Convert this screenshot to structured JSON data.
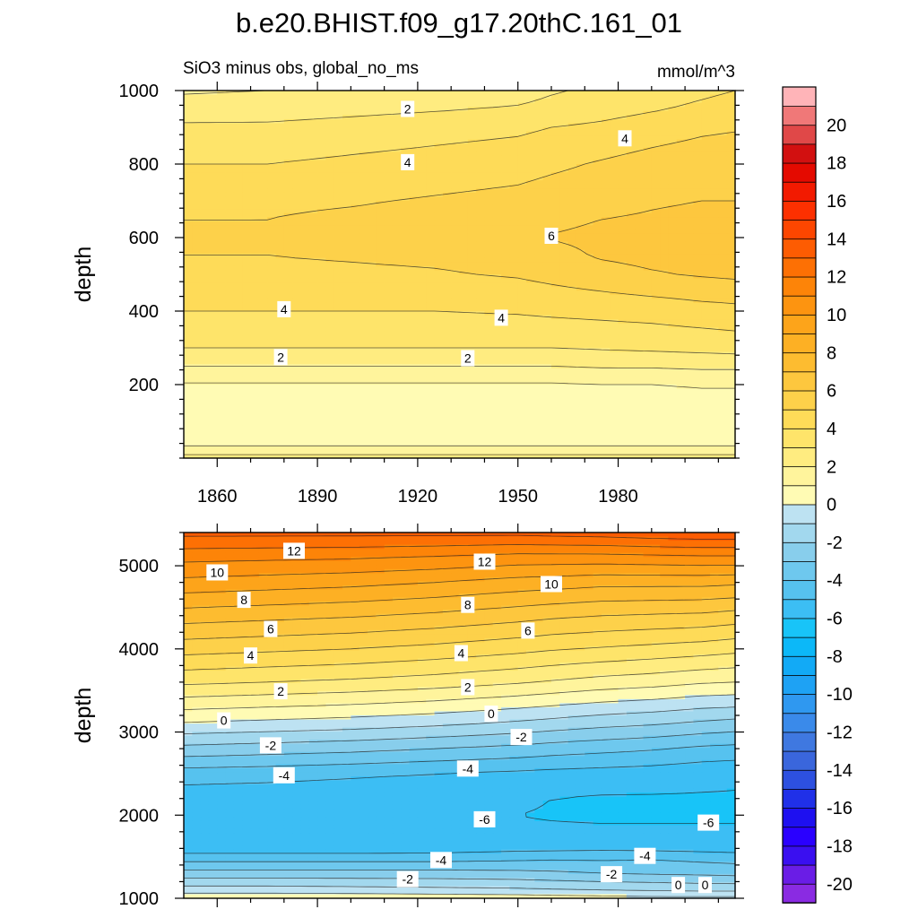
{
  "figure": {
    "title": "b.e20.BHIST.f09_g17.20thC.161_01",
    "subtitle_left": "SiO3 minus obs, global_no_ms",
    "subtitle_right": "mmol/m^3"
  },
  "colorbar": {
    "levels": [
      -21,
      -20,
      -19,
      -18,
      -17,
      -16,
      -15,
      -14,
      -13,
      -12,
      -11,
      -10,
      -9,
      -8,
      -7,
      -6,
      -5,
      -4,
      -3,
      -2,
      -1,
      0,
      1,
      2,
      3,
      4,
      5,
      6,
      7,
      8,
      9,
      10,
      11,
      12,
      13,
      14,
      15,
      16,
      17,
      18,
      19,
      20,
      21
    ],
    "colors": [
      "#8a2be2",
      "#6a1de6",
      "#3a0ff0",
      "#2a00ff",
      "#1e10f0",
      "#2030e8",
      "#2d50e0",
      "#3a66dc",
      "#3f78e0",
      "#3a8aea",
      "#2f98f0",
      "#1ea2f4",
      "#12aaf6",
      "#0cb8f8",
      "#18c4f8",
      "#3cbef4",
      "#56c2ef",
      "#6ec8ee",
      "#88ceec",
      "#a2d8ee",
      "#bde2f2",
      "#fffbb4",
      "#fff49c",
      "#ffec80",
      "#fee46a",
      "#fedb58",
      "#fdd14a",
      "#fdc73e",
      "#fdbc30",
      "#fdb024",
      "#fda41a",
      "#fd9410",
      "#fd8408",
      "#fd7004",
      "#fd5c02",
      "#fd4600",
      "#fd3000",
      "#f21a00",
      "#e40a00",
      "#d21010",
      "#e04848",
      "#f07878",
      "#ffb4b8"
    ],
    "tick_labels": [
      "-20",
      "-18",
      "-16",
      "-14",
      "-12",
      "-10",
      "-8",
      "-6",
      "-4",
      "-2",
      "0",
      "2",
      "4",
      "6",
      "8",
      "10",
      "12",
      "14",
      "16",
      "18",
      "20"
    ]
  },
  "chart_data": [
    {
      "type": "contour",
      "panel": "top",
      "title": "SiO3 minus obs, global_no_ms",
      "units": "mmol/m^3",
      "ylabel": "depth",
      "xlim": [
        1850,
        2015
      ],
      "ylim": [
        1000,
        0
      ],
      "x": [
        1850,
        1875,
        1900,
        1925,
        1950,
        1960,
        1975,
        1990,
        2005,
        2015
      ],
      "y": [
        0,
        25,
        50,
        100,
        150,
        200,
        250,
        300,
        400,
        500,
        550,
        600,
        650,
        700,
        800,
        900,
        950,
        1000
      ],
      "z": [
        [
          2.5,
          2.5,
          2.5,
          2.5,
          2.5,
          2.5,
          2.5,
          2.5,
          2.5,
          2.5
        ],
        [
          1.2,
          1.2,
          1.2,
          1.2,
          1.2,
          1.2,
          1.2,
          1.2,
          1.2,
          1.2
        ],
        [
          0.6,
          0.6,
          0.6,
          0.6,
          0.6,
          0.6,
          0.6,
          0.6,
          0.6,
          0.6
        ],
        [
          0.3,
          0.3,
          0.3,
          0.3,
          0.3,
          0.3,
          0.3,
          0.3,
          0.3,
          0.3
        ],
        [
          0.5,
          0.5,
          0.5,
          0.5,
          0.5,
          0.5,
          0.5,
          0.5,
          0.6,
          0.6
        ],
        [
          0.9,
          0.9,
          0.9,
          0.9,
          0.9,
          0.9,
          1.0,
          1.0,
          1.1,
          1.1
        ],
        [
          2.0,
          2.0,
          2.0,
          2.0,
          2.0,
          2.0,
          2.1,
          2.1,
          2.2,
          2.2
        ],
        [
          3.0,
          3.0,
          3.0,
          3.0,
          3.0,
          3.0,
          3.1,
          3.2,
          3.3,
          3.4
        ],
        [
          4.0,
          4.0,
          4.0,
          4.0,
          4.1,
          4.2,
          4.3,
          4.4,
          4.6,
          4.7
        ],
        [
          4.7,
          4.7,
          4.8,
          4.9,
          5.1,
          5.3,
          5.6,
          5.9,
          6.1,
          6.2
        ],
        [
          5.0,
          5.0,
          5.1,
          5.2,
          5.4,
          5.7,
          6.1,
          6.3,
          6.4,
          6.4
        ],
        [
          5.1,
          5.1,
          5.2,
          5.4,
          5.7,
          6.05,
          6.2,
          6.3,
          6.4,
          6.4
        ],
        [
          5.0,
          5.0,
          5.2,
          5.4,
          5.6,
          5.8,
          6.0,
          6.1,
          6.2,
          6.2
        ],
        [
          4.7,
          4.8,
          4.9,
          5.1,
          5.3,
          5.5,
          5.7,
          5.9,
          6.0,
          6.0
        ],
        [
          4.0,
          4.0,
          4.2,
          4.4,
          4.6,
          4.8,
          5.1,
          5.4,
          5.6,
          5.7
        ],
        [
          3.2,
          3.2,
          3.4,
          3.6,
          3.8,
          4.0,
          4.2,
          4.5,
          4.8,
          4.9
        ],
        [
          2.4,
          2.5,
          2.7,
          2.9,
          3.1,
          3.3,
          3.6,
          3.9,
          4.2,
          4.4
        ],
        [
          1.9,
          2.0,
          2.2,
          2.4,
          2.6,
          2.9,
          3.2,
          3.5,
          3.8,
          4.0
        ]
      ],
      "contour_labels": [
        {
          "text": "2",
          "x": 1879,
          "y": 275
        },
        {
          "text": "2",
          "x": 1935,
          "y": 272
        },
        {
          "text": "4",
          "x": 1880,
          "y": 405
        },
        {
          "text": "4",
          "x": 1945,
          "y": 382
        },
        {
          "text": "6",
          "x": 1960,
          "y": 605
        },
        {
          "text": "4",
          "x": 1917,
          "y": 805
        },
        {
          "text": "4",
          "x": 1982,
          "y": 870
        },
        {
          "text": "2",
          "x": 1917,
          "y": 950
        }
      ]
    },
    {
      "type": "contour",
      "panel": "bottom",
      "units": "mmol/m^3",
      "ylabel": "depth",
      "xlim": [
        1850,
        2015
      ],
      "ylim": [
        5400,
        1000
      ],
      "x": [
        1850,
        1875,
        1900,
        1925,
        1950,
        1960,
        1975,
        1990,
        2005,
        2015
      ],
      "y": [
        1000,
        1100,
        1300,
        1500,
        1600,
        1800,
        2000,
        2200,
        2500,
        2800,
        3100,
        3300,
        3600,
        4000,
        4400,
        4800,
        5100,
        5400
      ],
      "z": [
        [
          0.8,
          0.8,
          0.8,
          0.7,
          0.6,
          0.5,
          0.4,
          0.3,
          0.3,
          0.3
        ],
        [
          -0.5,
          -0.5,
          -0.6,
          -0.7,
          -0.8,
          -0.9,
          -1.0,
          -1.1,
          -1.2,
          -1.2
        ],
        [
          -2.6,
          -2.6,
          -2.6,
          -2.6,
          -2.7,
          -2.8,
          -3.0,
          -3.1,
          -3.2,
          -3.3
        ],
        [
          -4.6,
          -4.6,
          -4.6,
          -4.6,
          -4.4,
          -4.3,
          -4.3,
          -4.2,
          -4.4,
          -4.5
        ],
        [
          -5.6,
          -5.6,
          -5.6,
          -5.5,
          -5.3,
          -5.3,
          -5.2,
          -5.3,
          -5.4,
          -5.5
        ],
        [
          -5.9,
          -5.9,
          -5.9,
          -5.9,
          -5.9,
          -5.9,
          -5.9,
          -5.9,
          -5.9,
          -5.9
        ],
        [
          -5.9,
          -5.9,
          -5.9,
          -5.9,
          -6.0,
          -6.05,
          -6.1,
          -6.1,
          -6.1,
          -6.1
        ],
        [
          -5.6,
          -5.7,
          -5.8,
          -5.9,
          -5.9,
          -6.0,
          -6.1,
          -6.1,
          -6.1,
          -6.1
        ],
        [
          -4.5,
          -4.6,
          -4.8,
          -5.0,
          -5.2,
          -5.3,
          -5.4,
          -5.5,
          -5.7,
          -5.8
        ],
        [
          -2.3,
          -2.5,
          -2.7,
          -3.0,
          -3.3,
          -3.5,
          -3.7,
          -3.9,
          -4.2,
          -4.3
        ],
        [
          -0.1,
          -0.3,
          -0.5,
          -0.8,
          -1.2,
          -1.4,
          -1.7,
          -1.9,
          -2.2,
          -2.4
        ],
        [
          1.2,
          1.0,
          0.8,
          0.5,
          0.1,
          -0.1,
          -0.4,
          -0.6,
          -0.9,
          -1.0
        ],
        [
          3.2,
          3.0,
          2.8,
          2.5,
          2.1,
          1.9,
          1.6,
          1.4,
          1.1,
          1.0
        ],
        [
          5.4,
          5.2,
          5.0,
          4.7,
          4.3,
          4.1,
          3.9,
          3.7,
          3.5,
          3.3
        ],
        [
          7.5,
          7.3,
          7.1,
          6.8,
          6.4,
          6.2,
          6.0,
          5.9,
          5.8,
          5.6
        ],
        [
          9.7,
          9.5,
          9.3,
          9.0,
          8.6,
          8.5,
          8.3,
          8.3,
          8.3,
          8.2
        ],
        [
          11.3,
          11.2,
          11.1,
          10.9,
          10.6,
          10.6,
          10.6,
          10.7,
          10.8,
          10.8
        ],
        [
          13.3,
          13.3,
          13.3,
          13.3,
          13.3,
          13.4,
          13.5,
          13.7,
          13.8,
          13.8
        ]
      ],
      "contour_labels": [
        {
          "text": "0",
          "x": 1998,
          "y": 1160
        },
        {
          "text": "0",
          "x": 2006,
          "y": 1160
        },
        {
          "text": "-2",
          "x": 1917,
          "y": 1230
        },
        {
          "text": "-2",
          "x": 1978,
          "y": 1290
        },
        {
          "text": "-4",
          "x": 1927,
          "y": 1460
        },
        {
          "text": "-4",
          "x": 1988,
          "y": 1510
        },
        {
          "text": "-6",
          "x": 1940,
          "y": 1950
        },
        {
          "text": "-6",
          "x": 2007,
          "y": 1910
        },
        {
          "text": "-4",
          "x": 1880,
          "y": 2480
        },
        {
          "text": "-4",
          "x": 1935,
          "y": 2560
        },
        {
          "text": "-2",
          "x": 1876,
          "y": 2840
        },
        {
          "text": "-2",
          "x": 1951,
          "y": 2940
        },
        {
          "text": "0",
          "x": 1862,
          "y": 3140
        },
        {
          "text": "0",
          "x": 1942,
          "y": 3220
        },
        {
          "text": "2",
          "x": 1879,
          "y": 3490
        },
        {
          "text": "2",
          "x": 1935,
          "y": 3540
        },
        {
          "text": "4",
          "x": 1870,
          "y": 3920
        },
        {
          "text": "4",
          "x": 1933,
          "y": 3950
        },
        {
          "text": "6",
          "x": 1876,
          "y": 4240
        },
        {
          "text": "6",
          "x": 1953,
          "y": 4220
        },
        {
          "text": "8",
          "x": 1868,
          "y": 4590
        },
        {
          "text": "8",
          "x": 1935,
          "y": 4530
        },
        {
          "text": "10",
          "x": 1860,
          "y": 4920
        },
        {
          "text": "10",
          "x": 1960,
          "y": 4780
        },
        {
          "text": "12",
          "x": 1883,
          "y": 5180
        },
        {
          "text": "12",
          "x": 1940,
          "y": 5050
        }
      ]
    }
  ],
  "axes": {
    "top": {
      "ylabel": "depth",
      "y_ticks": [
        {
          "v": 200,
          "label": "200"
        },
        {
          "v": 400,
          "label": "400"
        },
        {
          "v": 600,
          "label": "600"
        },
        {
          "v": 800,
          "label": "800"
        },
        {
          "v": 1000,
          "label": "1000"
        }
      ],
      "x_ticks": [
        {
          "v": 1860,
          "label": "1860"
        },
        {
          "v": 1890,
          "label": "1890"
        },
        {
          "v": 1920,
          "label": "1920"
        },
        {
          "v": 1950,
          "label": "1950"
        },
        {
          "v": 1980,
          "label": "1980"
        }
      ]
    },
    "bottom": {
      "ylabel": "depth",
      "y_ticks": [
        {
          "v": 1000,
          "label": "1000"
        },
        {
          "v": 2000,
          "label": "2000"
        },
        {
          "v": 3000,
          "label": "3000"
        },
        {
          "v": 4000,
          "label": "4000"
        },
        {
          "v": 5000,
          "label": "5000"
        }
      ],
      "x_ticks": [
        {
          "v": 1860,
          "label": ""
        },
        {
          "v": 1890,
          "label": ""
        },
        {
          "v": 1920,
          "label": ""
        },
        {
          "v": 1950,
          "label": ""
        },
        {
          "v": 1980,
          "label": ""
        }
      ]
    }
  }
}
